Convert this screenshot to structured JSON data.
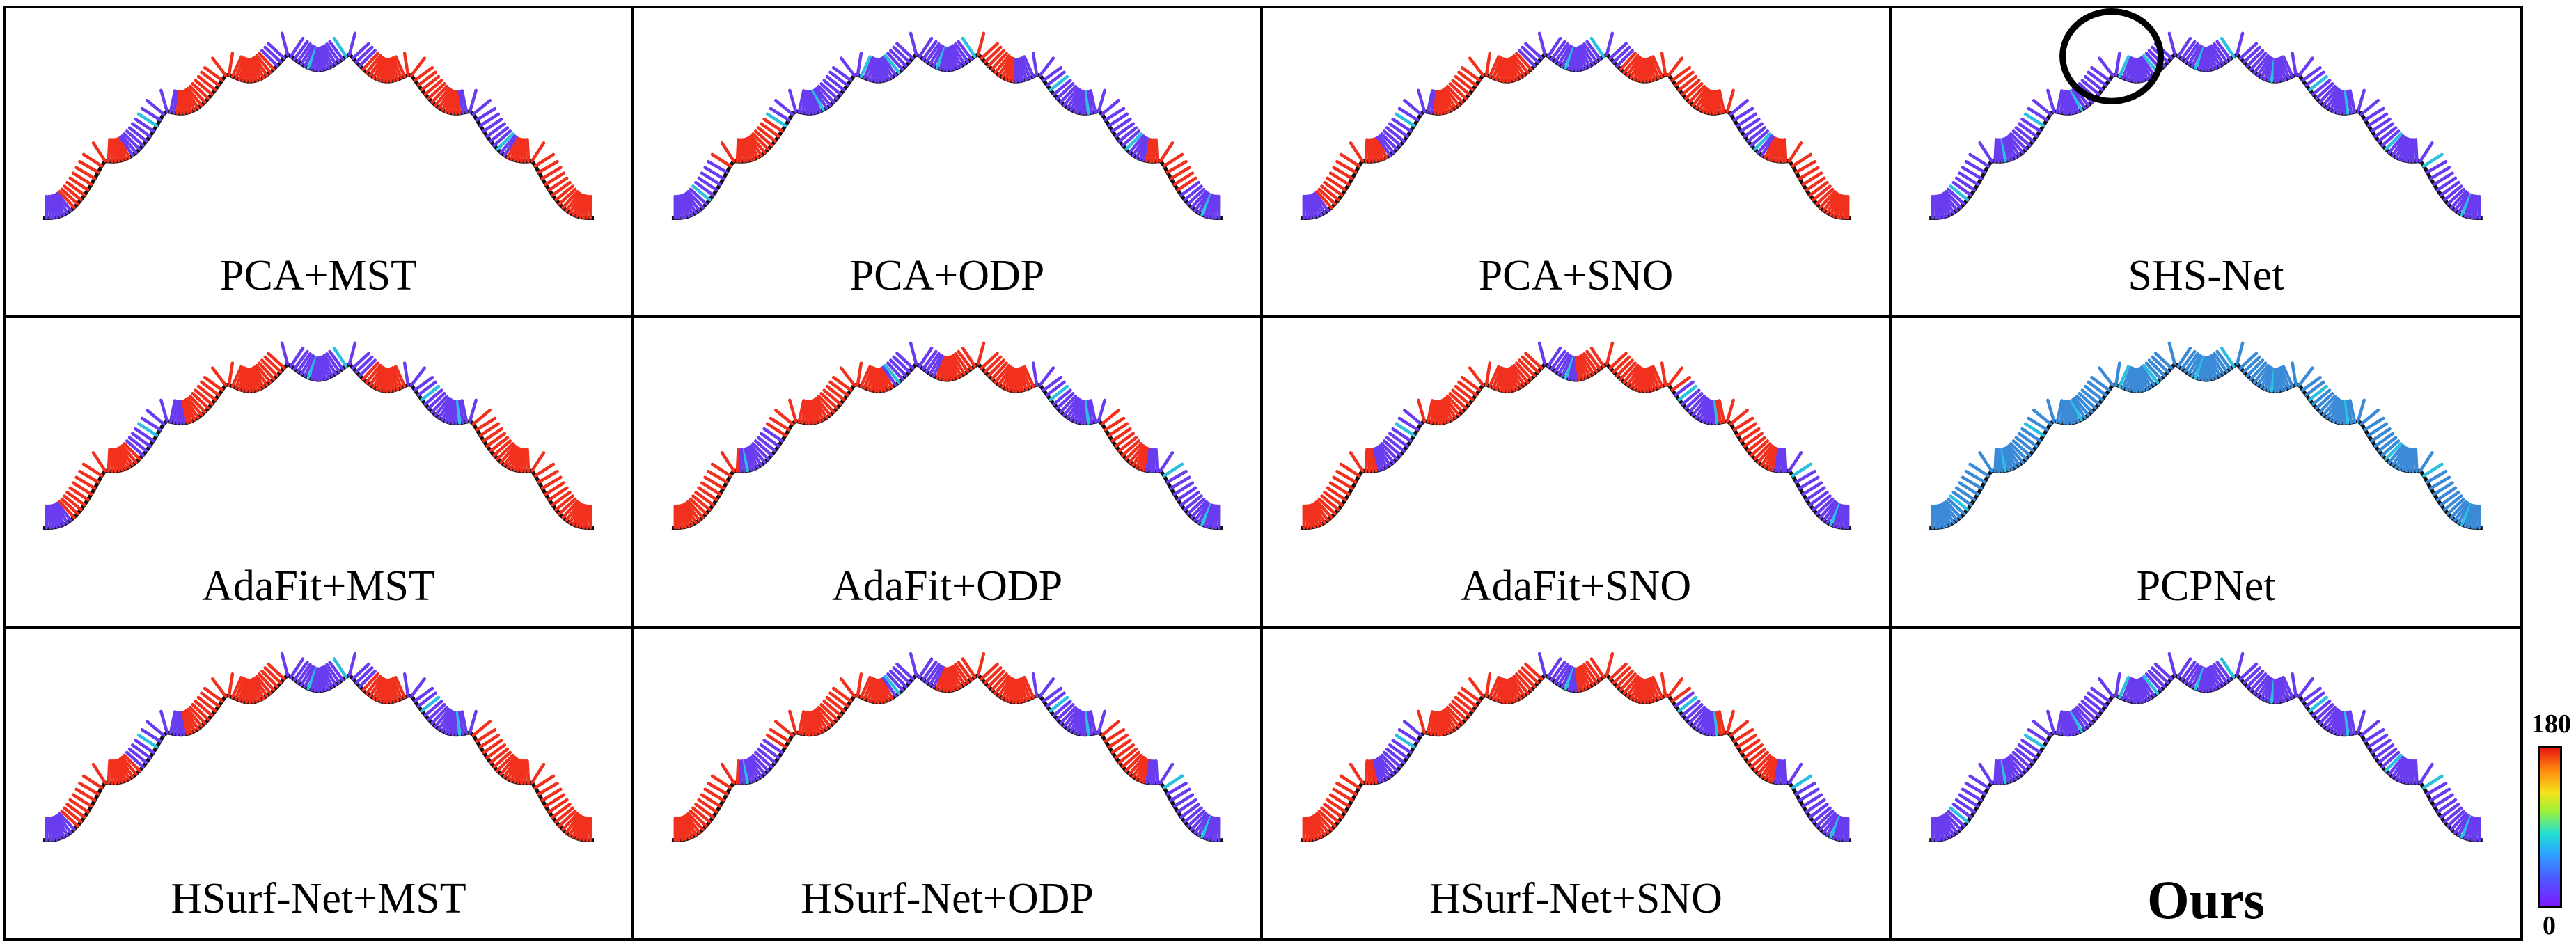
{
  "panels": [
    {
      "label": "PCA+MST",
      "profile": [
        [
          0.05,
          "b"
        ],
        [
          0.16,
          "r"
        ],
        [
          0.24,
          "b"
        ],
        [
          0.3,
          "r"
        ],
        [
          0.42,
          "r"
        ],
        [
          0.48,
          "b"
        ],
        [
          0.58,
          "b"
        ],
        [
          0.66,
          "r"
        ],
        [
          0.76,
          "r"
        ],
        [
          0.84,
          "b"
        ],
        [
          0.9,
          "r"
        ],
        [
          1.0,
          "r"
        ]
      ],
      "circle": false,
      "bold": false
    },
    {
      "label": "PCA+ODP",
      "profile": [
        [
          0.1,
          "b"
        ],
        [
          0.2,
          "r"
        ],
        [
          0.3,
          "b"
        ],
        [
          0.55,
          "b"
        ],
        [
          0.62,
          "r"
        ],
        [
          0.66,
          "b"
        ],
        [
          0.86,
          "b"
        ],
        [
          0.92,
          "r"
        ],
        [
          1.0,
          "b"
        ]
      ],
      "circle": false,
      "bold": false
    },
    {
      "label": "PCA+SNO",
      "profile": [
        [
          0.05,
          "b"
        ],
        [
          0.16,
          "r"
        ],
        [
          0.24,
          "b"
        ],
        [
          0.3,
          "r"
        ],
        [
          0.42,
          "r"
        ],
        [
          0.48,
          "b"
        ],
        [
          0.58,
          "b"
        ],
        [
          0.66,
          "r"
        ],
        [
          0.78,
          "r"
        ],
        [
          0.84,
          "b"
        ],
        [
          0.9,
          "r"
        ],
        [
          1.0,
          "r"
        ]
      ],
      "circle": false,
      "bold": false
    },
    {
      "label": "SHS-Net",
      "profile": [
        [
          1.0,
          "b"
        ]
      ],
      "circle": true,
      "bold": false
    },
    {
      "label": "AdaFit+MST",
      "profile": [
        [
          0.05,
          "b"
        ],
        [
          0.18,
          "r"
        ],
        [
          0.26,
          "b"
        ],
        [
          0.32,
          "r"
        ],
        [
          0.44,
          "r"
        ],
        [
          0.5,
          "b"
        ],
        [
          0.58,
          "b"
        ],
        [
          0.66,
          "r"
        ],
        [
          0.78,
          "b"
        ],
        [
          0.88,
          "r"
        ],
        [
          1.0,
          "r"
        ]
      ],
      "circle": false,
      "bold": false
    },
    {
      "label": "AdaFit+ODP",
      "profile": [
        [
          0.12,
          "r"
        ],
        [
          0.2,
          "b"
        ],
        [
          0.28,
          "r"
        ],
        [
          0.4,
          "r"
        ],
        [
          0.48,
          "b"
        ],
        [
          0.56,
          "r"
        ],
        [
          0.66,
          "r"
        ],
        [
          0.78,
          "b"
        ],
        [
          0.86,
          "r"
        ],
        [
          1.0,
          "b"
        ]
      ],
      "circle": false,
      "bold": false
    },
    {
      "label": "AdaFit+SNO",
      "profile": [
        [
          0.14,
          "r"
        ],
        [
          0.22,
          "b"
        ],
        [
          0.3,
          "r"
        ],
        [
          0.44,
          "r"
        ],
        [
          0.5,
          "b"
        ],
        [
          0.56,
          "r"
        ],
        [
          0.68,
          "r"
        ],
        [
          0.76,
          "b"
        ],
        [
          0.86,
          "r"
        ],
        [
          1.0,
          "b"
        ]
      ],
      "circle": false,
      "bold": false
    },
    {
      "label": "PCPNet",
      "profile": [
        [
          1.0,
          "t"
        ]
      ],
      "circle": false,
      "bold": false
    },
    {
      "label": "HSurf-Net+MST",
      "profile": [
        [
          0.06,
          "b"
        ],
        [
          0.18,
          "r"
        ],
        [
          0.26,
          "b"
        ],
        [
          0.32,
          "r"
        ],
        [
          0.44,
          "r"
        ],
        [
          0.5,
          "b"
        ],
        [
          0.58,
          "b"
        ],
        [
          0.66,
          "r"
        ],
        [
          0.78,
          "b"
        ],
        [
          0.88,
          "r"
        ],
        [
          1.0,
          "r"
        ]
      ],
      "circle": false,
      "bold": false
    },
    {
      "label": "HSurf-Net+ODP",
      "profile": [
        [
          0.12,
          "r"
        ],
        [
          0.2,
          "b"
        ],
        [
          0.28,
          "r"
        ],
        [
          0.4,
          "r"
        ],
        [
          0.48,
          "b"
        ],
        [
          0.56,
          "r"
        ],
        [
          0.66,
          "r"
        ],
        [
          0.78,
          "b"
        ],
        [
          0.86,
          "r"
        ],
        [
          1.0,
          "b"
        ]
      ],
      "circle": false,
      "bold": false
    },
    {
      "label": "HSurf-Net+SNO",
      "profile": [
        [
          0.14,
          "r"
        ],
        [
          0.22,
          "b"
        ],
        [
          0.3,
          "r"
        ],
        [
          0.44,
          "r"
        ],
        [
          0.5,
          "b"
        ],
        [
          0.56,
          "r"
        ],
        [
          0.68,
          "r"
        ],
        [
          0.76,
          "b"
        ],
        [
          0.86,
          "r"
        ],
        [
          1.0,
          "b"
        ]
      ],
      "circle": false,
      "bold": false
    },
    {
      "label": "Ours",
      "profile": [
        [
          1.0,
          "b"
        ]
      ],
      "circle": false,
      "bold": true
    }
  ],
  "colorbar": {
    "max_label": "180",
    "min_label": "0"
  },
  "colors": {
    "red": "#f2301e",
    "blue": "#6a3cf0",
    "cyan": "#2bbfe0",
    "teal": "#3a8ad8"
  }
}
